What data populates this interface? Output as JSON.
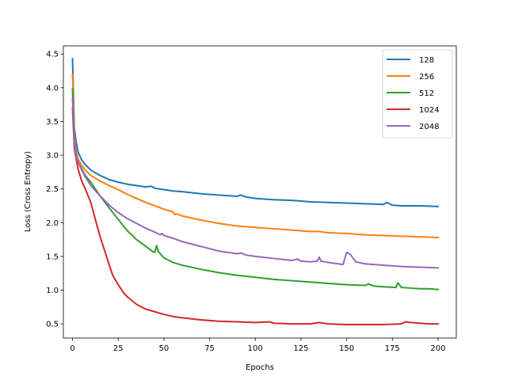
{
  "chart_data": {
    "type": "line",
    "xlabel": "Epochs",
    "ylabel": "Loss (Cross Entropy)",
    "xlim": [
      -5,
      210
    ],
    "ylim": [
      0.29,
      4.62
    ],
    "xticks": [
      0,
      25,
      50,
      75,
      100,
      125,
      150,
      175,
      200
    ],
    "yticks": [
      0.5,
      1.0,
      1.5,
      2.0,
      2.5,
      3.0,
      3.5,
      4.0,
      4.5
    ],
    "legend_position": "top-right",
    "series": [
      {
        "name": "128",
        "color": "#1f77b4",
        "points": [
          [
            0,
            4.43
          ],
          [
            0.5,
            3.9
          ],
          [
            1,
            3.4
          ],
          [
            2,
            3.2
          ],
          [
            3,
            3.05
          ],
          [
            5,
            2.93
          ],
          [
            7,
            2.86
          ],
          [
            10,
            2.78
          ],
          [
            15,
            2.7
          ],
          [
            20,
            2.64
          ],
          [
            25,
            2.6
          ],
          [
            30,
            2.57
          ],
          [
            35,
            2.55
          ],
          [
            40,
            2.53
          ],
          [
            43,
            2.54
          ],
          [
            45,
            2.51
          ],
          [
            50,
            2.49
          ],
          [
            55,
            2.47
          ],
          [
            60,
            2.46
          ],
          [
            70,
            2.43
          ],
          [
            80,
            2.41
          ],
          [
            90,
            2.39
          ],
          [
            92,
            2.41
          ],
          [
            95,
            2.38
          ],
          [
            100,
            2.36
          ],
          [
            110,
            2.34
          ],
          [
            120,
            2.33
          ],
          [
            130,
            2.31
          ],
          [
            140,
            2.3
          ],
          [
            150,
            2.29
          ],
          [
            160,
            2.28
          ],
          [
            170,
            2.27
          ],
          [
            172,
            2.3
          ],
          [
            175,
            2.26
          ],
          [
            180,
            2.25
          ],
          [
            190,
            2.25
          ],
          [
            200,
            2.24
          ]
        ]
      },
      {
        "name": "256",
        "color": "#ff7f0e",
        "points": [
          [
            0,
            4.2
          ],
          [
            0.5,
            3.8
          ],
          [
            1,
            3.3
          ],
          [
            2,
            3.05
          ],
          [
            3,
            2.95
          ],
          [
            5,
            2.85
          ],
          [
            7,
            2.78
          ],
          [
            10,
            2.7
          ],
          [
            15,
            2.62
          ],
          [
            20,
            2.55
          ],
          [
            25,
            2.49
          ],
          [
            30,
            2.42
          ],
          [
            35,
            2.36
          ],
          [
            40,
            2.3
          ],
          [
            45,
            2.25
          ],
          [
            50,
            2.2
          ],
          [
            55,
            2.16
          ],
          [
            56,
            2.12
          ],
          [
            57,
            2.13
          ],
          [
            60,
            2.1
          ],
          [
            70,
            2.04
          ],
          [
            80,
            1.99
          ],
          [
            90,
            1.95
          ],
          [
            100,
            1.93
          ],
          [
            110,
            1.91
          ],
          [
            120,
            1.89
          ],
          [
            130,
            1.87
          ],
          [
            135,
            1.87
          ],
          [
            140,
            1.85
          ],
          [
            150,
            1.84
          ],
          [
            160,
            1.82
          ],
          [
            170,
            1.81
          ],
          [
            180,
            1.8
          ],
          [
            190,
            1.79
          ],
          [
            200,
            1.78
          ]
        ]
      },
      {
        "name": "512",
        "color": "#2ca02c",
        "points": [
          [
            0,
            3.98
          ],
          [
            0.5,
            3.6
          ],
          [
            1,
            3.2
          ],
          [
            2,
            3.0
          ],
          [
            3,
            2.9
          ],
          [
            5,
            2.8
          ],
          [
            7,
            2.7
          ],
          [
            10,
            2.6
          ],
          [
            15,
            2.4
          ],
          [
            20,
            2.22
          ],
          [
            25,
            2.05
          ],
          [
            30,
            1.88
          ],
          [
            35,
            1.75
          ],
          [
            40,
            1.65
          ],
          [
            44,
            1.57
          ],
          [
            45,
            1.56
          ],
          [
            46,
            1.66
          ],
          [
            47,
            1.57
          ],
          [
            50,
            1.48
          ],
          [
            55,
            1.41
          ],
          [
            60,
            1.37
          ],
          [
            70,
            1.31
          ],
          [
            80,
            1.26
          ],
          [
            90,
            1.22
          ],
          [
            100,
            1.19
          ],
          [
            110,
            1.16
          ],
          [
            120,
            1.14
          ],
          [
            130,
            1.12
          ],
          [
            140,
            1.1
          ],
          [
            150,
            1.08
          ],
          [
            160,
            1.07
          ],
          [
            162,
            1.09
          ],
          [
            165,
            1.06
          ],
          [
            170,
            1.05
          ],
          [
            177,
            1.04
          ],
          [
            178,
            1.11
          ],
          [
            180,
            1.04
          ],
          [
            185,
            1.03
          ],
          [
            190,
            1.02
          ],
          [
            195,
            1.02
          ],
          [
            200,
            1.01
          ]
        ]
      },
      {
        "name": "1024",
        "color": "#d62728",
        "points": [
          [
            0,
            3.7
          ],
          [
            0.5,
            3.4
          ],
          [
            1,
            3.1
          ],
          [
            2,
            2.95
          ],
          [
            3,
            2.8
          ],
          [
            5,
            2.62
          ],
          [
            7,
            2.5
          ],
          [
            10,
            2.3
          ],
          [
            12,
            2.1
          ],
          [
            15,
            1.8
          ],
          [
            18,
            1.55
          ],
          [
            20,
            1.38
          ],
          [
            22,
            1.22
          ],
          [
            25,
            1.08
          ],
          [
            28,
            0.96
          ],
          [
            30,
            0.9
          ],
          [
            35,
            0.79
          ],
          [
            40,
            0.72
          ],
          [
            45,
            0.68
          ],
          [
            50,
            0.64
          ],
          [
            55,
            0.61
          ],
          [
            60,
            0.59
          ],
          [
            70,
            0.56
          ],
          [
            80,
            0.54
          ],
          [
            90,
            0.53
          ],
          [
            100,
            0.52
          ],
          [
            108,
            0.53
          ],
          [
            110,
            0.51
          ],
          [
            120,
            0.5
          ],
          [
            130,
            0.5
          ],
          [
            135,
            0.52
          ],
          [
            140,
            0.5
          ],
          [
            150,
            0.49
          ],
          [
            160,
            0.49
          ],
          [
            170,
            0.49
          ],
          [
            180,
            0.5
          ],
          [
            182,
            0.53
          ],
          [
            185,
            0.52
          ],
          [
            190,
            0.51
          ],
          [
            195,
            0.5
          ],
          [
            200,
            0.5
          ]
        ]
      },
      {
        "name": "2048",
        "color": "#9467bd",
        "points": [
          [
            0,
            3.85
          ],
          [
            0.5,
            3.5
          ],
          [
            1,
            3.2
          ],
          [
            2,
            3.0
          ],
          [
            3,
            2.9
          ],
          [
            5,
            2.78
          ],
          [
            7,
            2.68
          ],
          [
            10,
            2.55
          ],
          [
            15,
            2.4
          ],
          [
            20,
            2.26
          ],
          [
            25,
            2.15
          ],
          [
            30,
            2.06
          ],
          [
            35,
            1.99
          ],
          [
            40,
            1.92
          ],
          [
            45,
            1.86
          ],
          [
            48,
            1.82
          ],
          [
            49,
            1.84
          ],
          [
            50,
            1.81
          ],
          [
            55,
            1.77
          ],
          [
            60,
            1.72
          ],
          [
            70,
            1.65
          ],
          [
            80,
            1.58
          ],
          [
            90,
            1.54
          ],
          [
            92,
            1.55
          ],
          [
            95,
            1.52
          ],
          [
            100,
            1.5
          ],
          [
            110,
            1.47
          ],
          [
            120,
            1.44
          ],
          [
            123,
            1.46
          ],
          [
            125,
            1.43
          ],
          [
            130,
            1.42
          ],
          [
            134,
            1.43
          ],
          [
            135,
            1.49
          ],
          [
            136,
            1.43
          ],
          [
            140,
            1.41
          ],
          [
            148,
            1.38
          ],
          [
            150,
            1.56
          ],
          [
            152,
            1.53
          ],
          [
            155,
            1.42
          ],
          [
            160,
            1.39
          ],
          [
            170,
            1.37
          ],
          [
            180,
            1.35
          ],
          [
            190,
            1.34
          ],
          [
            200,
            1.33
          ]
        ]
      }
    ]
  }
}
